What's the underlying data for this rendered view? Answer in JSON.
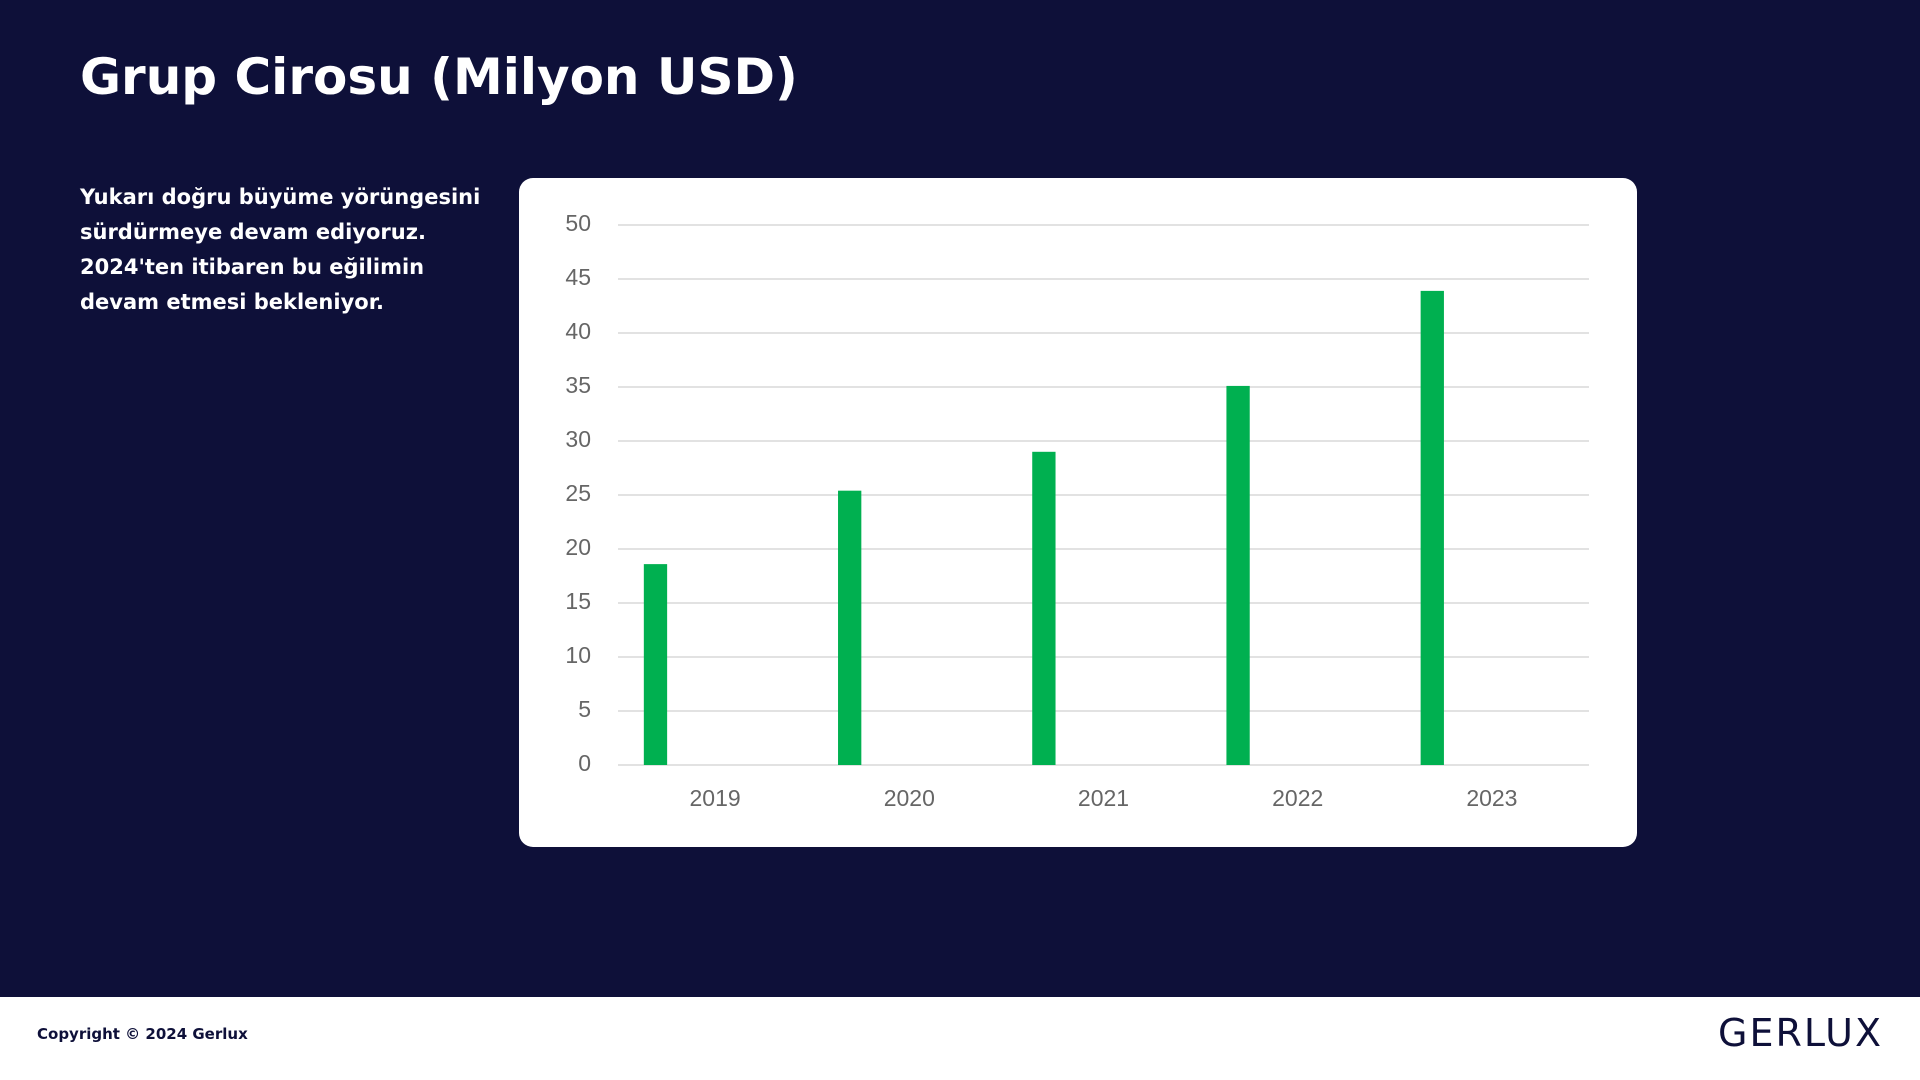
{
  "header": {
    "title": "Grup Cirosu (Milyon USD)"
  },
  "description": [
    "Yukarı doğru büyüme yörüngesini",
    "sürdürmeye devam ediyoruz.",
    "2024'ten itibaren bu eğilimin",
    "devam etmesi bekleniyor."
  ],
  "chart_data": {
    "type": "bar",
    "categories": [
      "2019",
      "2020",
      "2021",
      "2022",
      "2023"
    ],
    "values": [
      18.6,
      25.4,
      29,
      35.1,
      43.9
    ],
    "color": "#00b050",
    "ylim": [
      0,
      50
    ],
    "yticks": [
      0,
      5,
      10,
      15,
      20,
      25,
      30,
      35,
      40,
      45,
      50
    ],
    "grid": true
  },
  "footer": {
    "copyright": "Copyright © 2024 Gerlux",
    "logo": "GERLUX"
  }
}
